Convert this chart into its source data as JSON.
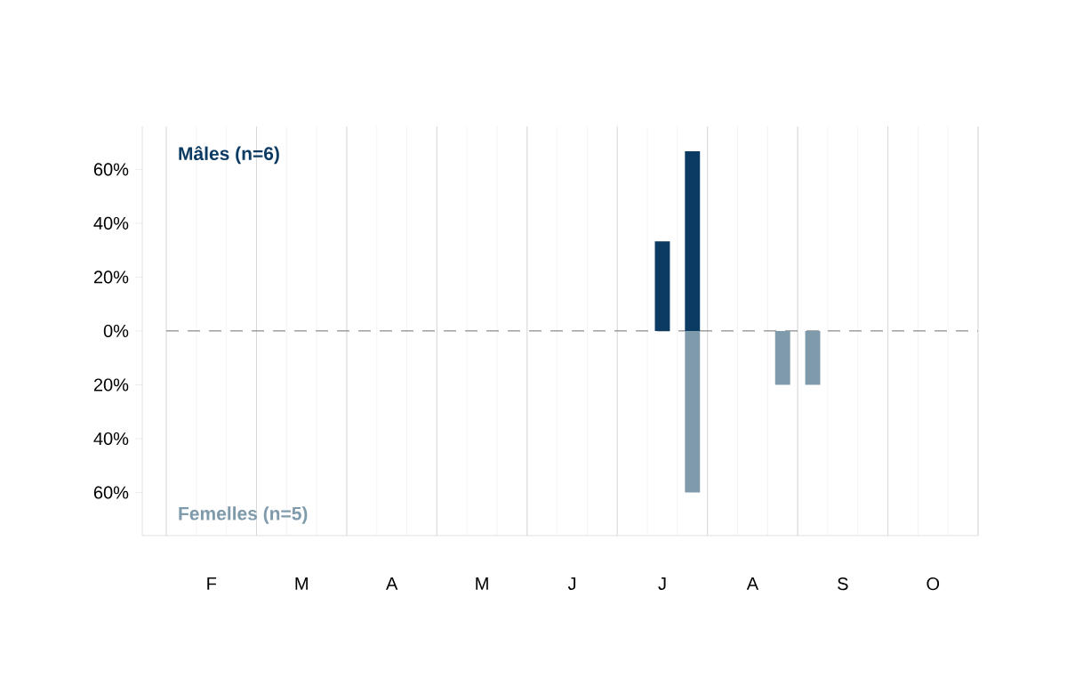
{
  "chart_data": {
    "type": "bar",
    "categories": [
      null,
      "F",
      null,
      null,
      "M",
      null,
      null,
      "A",
      null,
      null,
      "M",
      null,
      null,
      "J",
      null,
      null,
      "J",
      null,
      null,
      "A",
      null,
      null,
      "S",
      null,
      null,
      "O",
      null
    ],
    "series": [
      {
        "name": "Mâles (n=6)",
        "color": "#0b3a62",
        "values": [
          null,
          null,
          null,
          null,
          null,
          null,
          null,
          null,
          null,
          null,
          null,
          null,
          null,
          null,
          null,
          null,
          33.3,
          66.7,
          null,
          null,
          null,
          null,
          null,
          null,
          null,
          null,
          null
        ]
      },
      {
        "name": "Femelles (n=5)",
        "color": "#7f9bab",
        "values": [
          null,
          null,
          null,
          null,
          null,
          null,
          null,
          null,
          null,
          null,
          null,
          null,
          null,
          null,
          null,
          null,
          null,
          -60,
          null,
          null,
          -20,
          -20,
          null,
          null,
          null,
          null,
          null
        ]
      }
    ],
    "ylim": [
      -76,
      76
    ],
    "yticks": [
      {
        "value": -60,
        "label": "60%"
      },
      {
        "value": -40,
        "label": "40%"
      },
      {
        "value": -20,
        "label": "20%"
      },
      {
        "value": 0,
        "label": "0%"
      },
      {
        "value": 20,
        "label": "20%"
      },
      {
        "value": 40,
        "label": "40%"
      },
      {
        "value": 60,
        "label": "60%"
      }
    ],
    "ref_lines": [
      {
        "axis": "y",
        "value": 0,
        "color": "#8c8c8c",
        "line_style": "dashed"
      }
    ],
    "grid": "x"
  }
}
